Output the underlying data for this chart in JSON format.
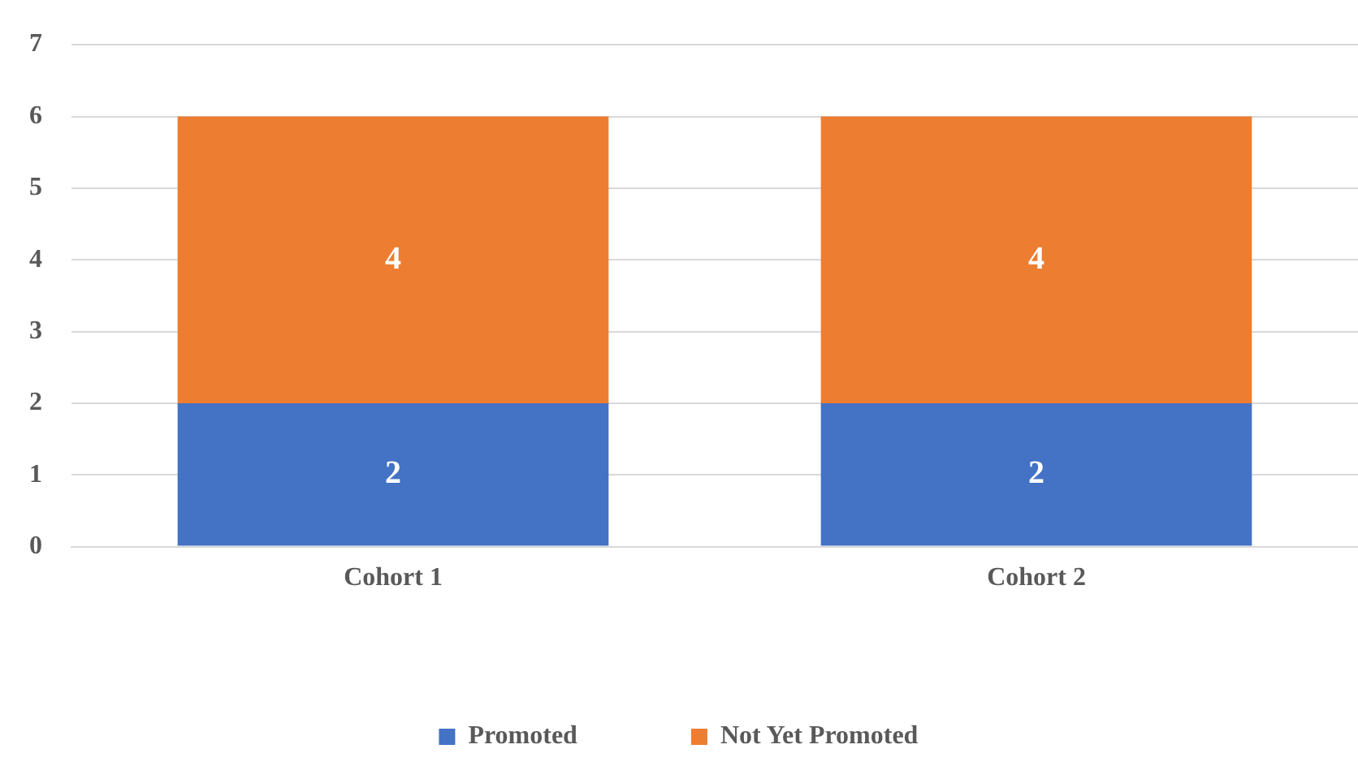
{
  "chart_data": {
    "type": "bar",
    "stacked": true,
    "categories": [
      "Cohort 1",
      "Cohort 2"
    ],
    "series": [
      {
        "name": "Promoted",
        "color": "#4472c4",
        "values": [
          2,
          2
        ]
      },
      {
        "name": "Not Yet Promoted",
        "color": "#ed7d31",
        "values": [
          4,
          4
        ]
      }
    ],
    "ylim": [
      0,
      7
    ],
    "yticks": [
      0,
      1,
      2,
      3,
      4,
      5,
      6,
      7
    ],
    "grid": "y",
    "legend": "bottom",
    "data_labels": true
  }
}
